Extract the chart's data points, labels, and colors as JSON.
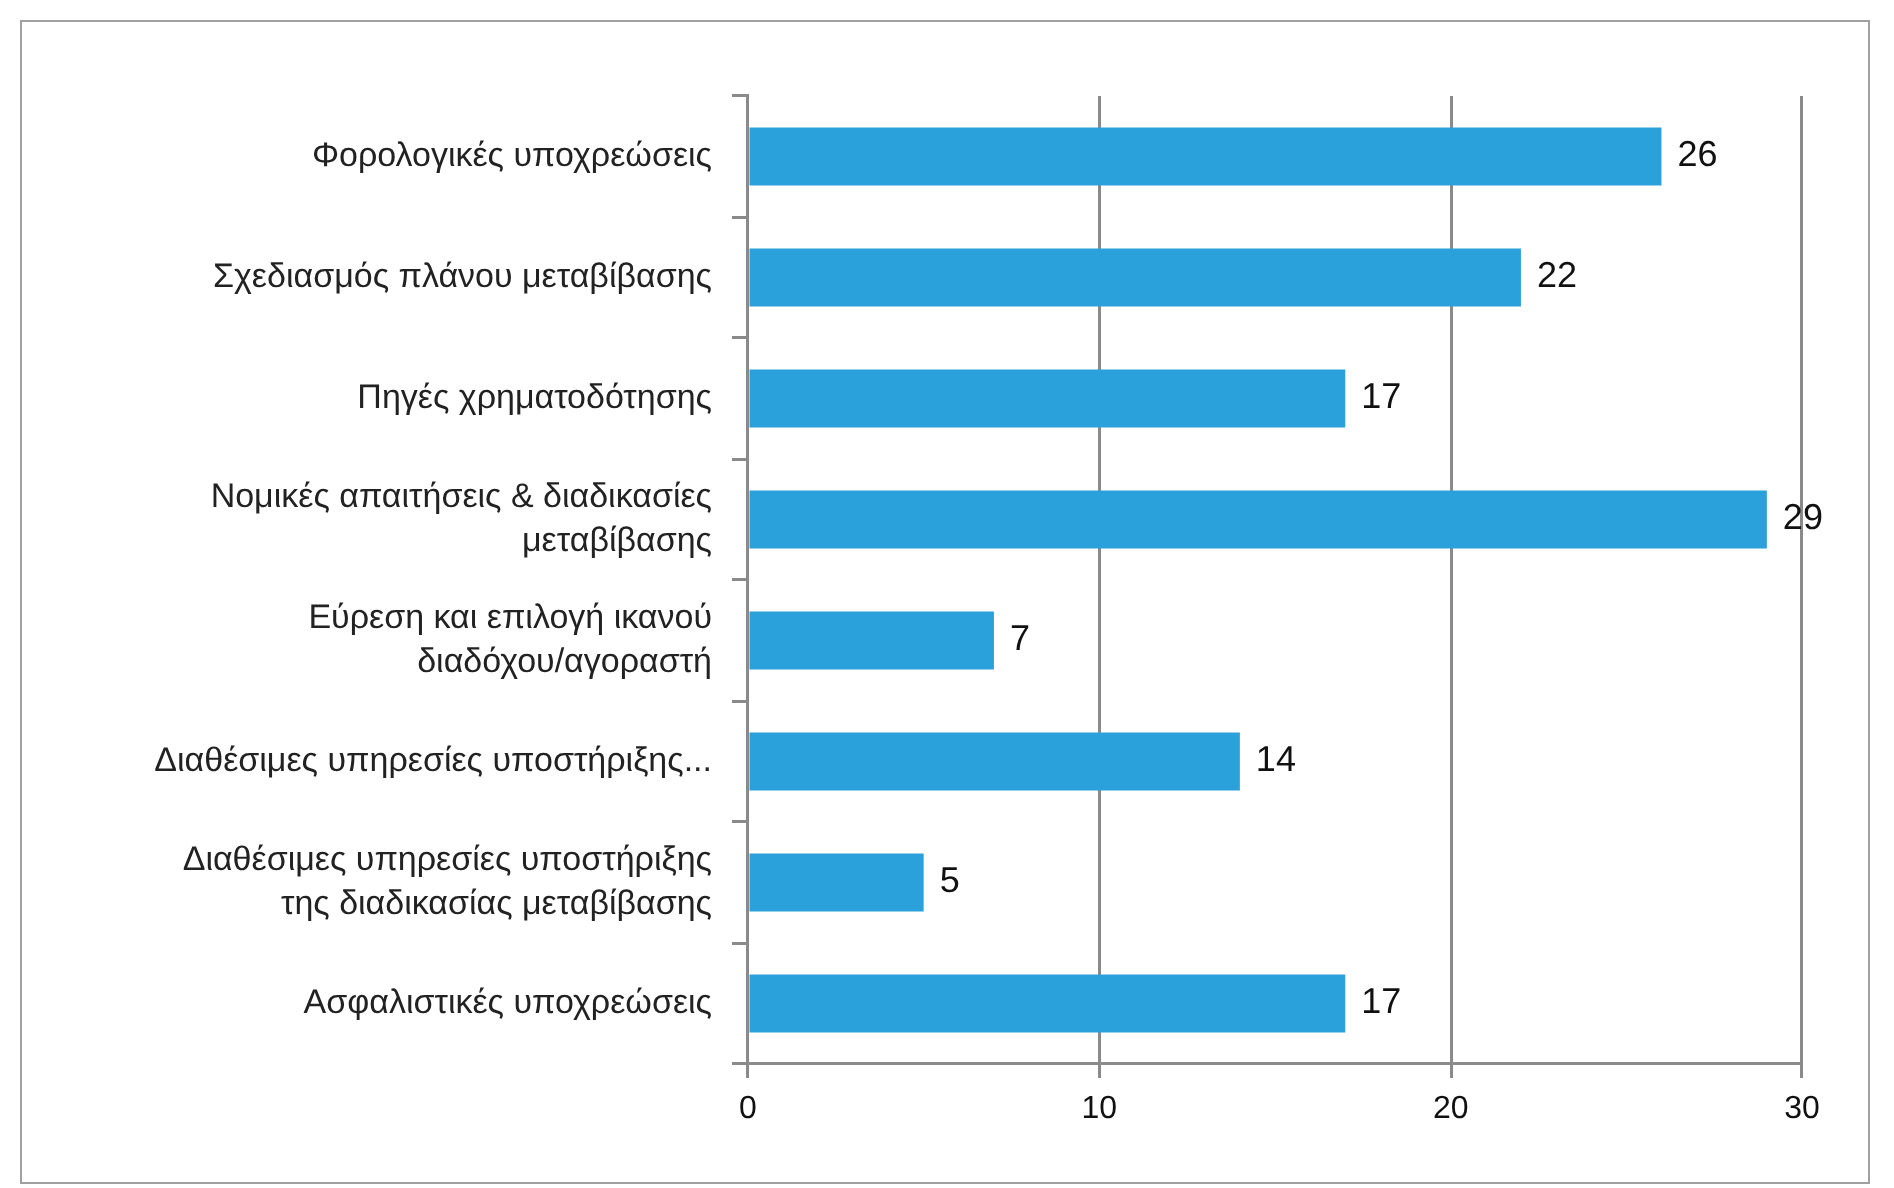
{
  "chart_data": {
    "type": "bar",
    "orientation": "horizontal",
    "categories": [
      "Φορολογικές υποχρεώσεις",
      "Σχεδιασμός πλάνου μεταβίβασης",
      "Πηγές χρηματοδότησης",
      "Νομικές απαιτήσεις & διαδικασίες μεταβίβασης",
      "Εύρεση και επιλογή ικανού διαδόχου/αγοραστή",
      "Διαθέσιμες υπηρεσίες υποστήριξης...",
      "Διαθέσιμες υπηρεσίες υποστήριξης της διαδικασίας μεταβίβασης",
      "Ασφαλιστικές υποχρεώσεις"
    ],
    "values": [
      26,
      22,
      17,
      29,
      7,
      14,
      5,
      17
    ],
    "color": "#2aa1da",
    "xlim": [
      0,
      30
    ],
    "xticks": [
      0,
      10,
      20,
      30
    ],
    "grid": "x",
    "data_labels": true
  }
}
